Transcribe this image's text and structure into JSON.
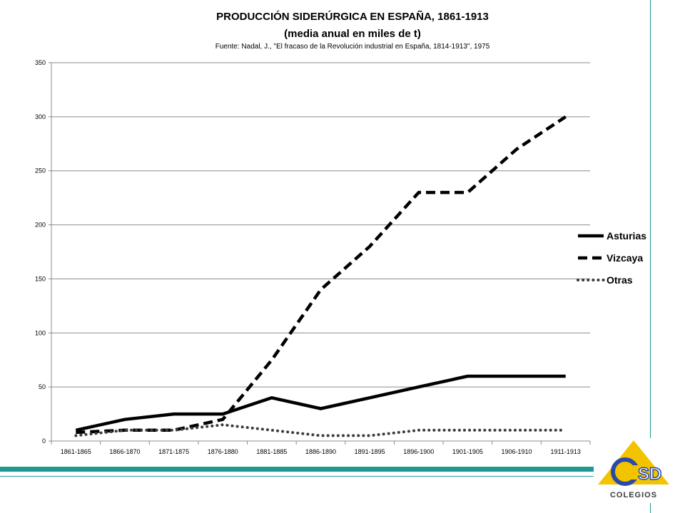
{
  "chart_data": {
    "type": "line",
    "title": "PRODUCCIÓN SIDERÚRGICA EN ESPAÑA, 1861-1913",
    "subtitle": "(media anual en miles de t)",
    "source": "Fuente: Nadal, J.,  \"El fracaso de la Revolución industrial en España, 1814-1913\", 1975",
    "categories": [
      "1861-1865",
      "1866-1870",
      "1871-1875",
      "1876-1880",
      "1881-1885",
      "1886-1890",
      "1891-1895",
      "1896-1900",
      "1901-1905",
      "1906-1910",
      "1911-1913"
    ],
    "ylim": [
      0,
      350
    ],
    "yticks": [
      0,
      50,
      100,
      150,
      200,
      250,
      300,
      350
    ],
    "grid": true,
    "legend_position": "right",
    "series": [
      {
        "name": "Asturias",
        "style": "solid",
        "color": "#000000",
        "values": [
          10,
          20,
          25,
          25,
          40,
          30,
          40,
          50,
          60,
          60,
          60
        ]
      },
      {
        "name": "Vizcaya",
        "style": "dashed",
        "color": "#000000",
        "values": [
          8,
          10,
          10,
          20,
          75,
          140,
          180,
          230,
          230,
          270,
          300
        ]
      },
      {
        "name": "Otras",
        "style": "dotted",
        "color": "#3c3c3c",
        "values": [
          5,
          10,
          10,
          15,
          10,
          5,
          5,
          10,
          10,
          10,
          10
        ]
      }
    ]
  },
  "decor": {
    "accent_color": "#1f9a93",
    "logo_text": "COLEGIOS",
    "logo_icon": "csd-logo-icon"
  }
}
